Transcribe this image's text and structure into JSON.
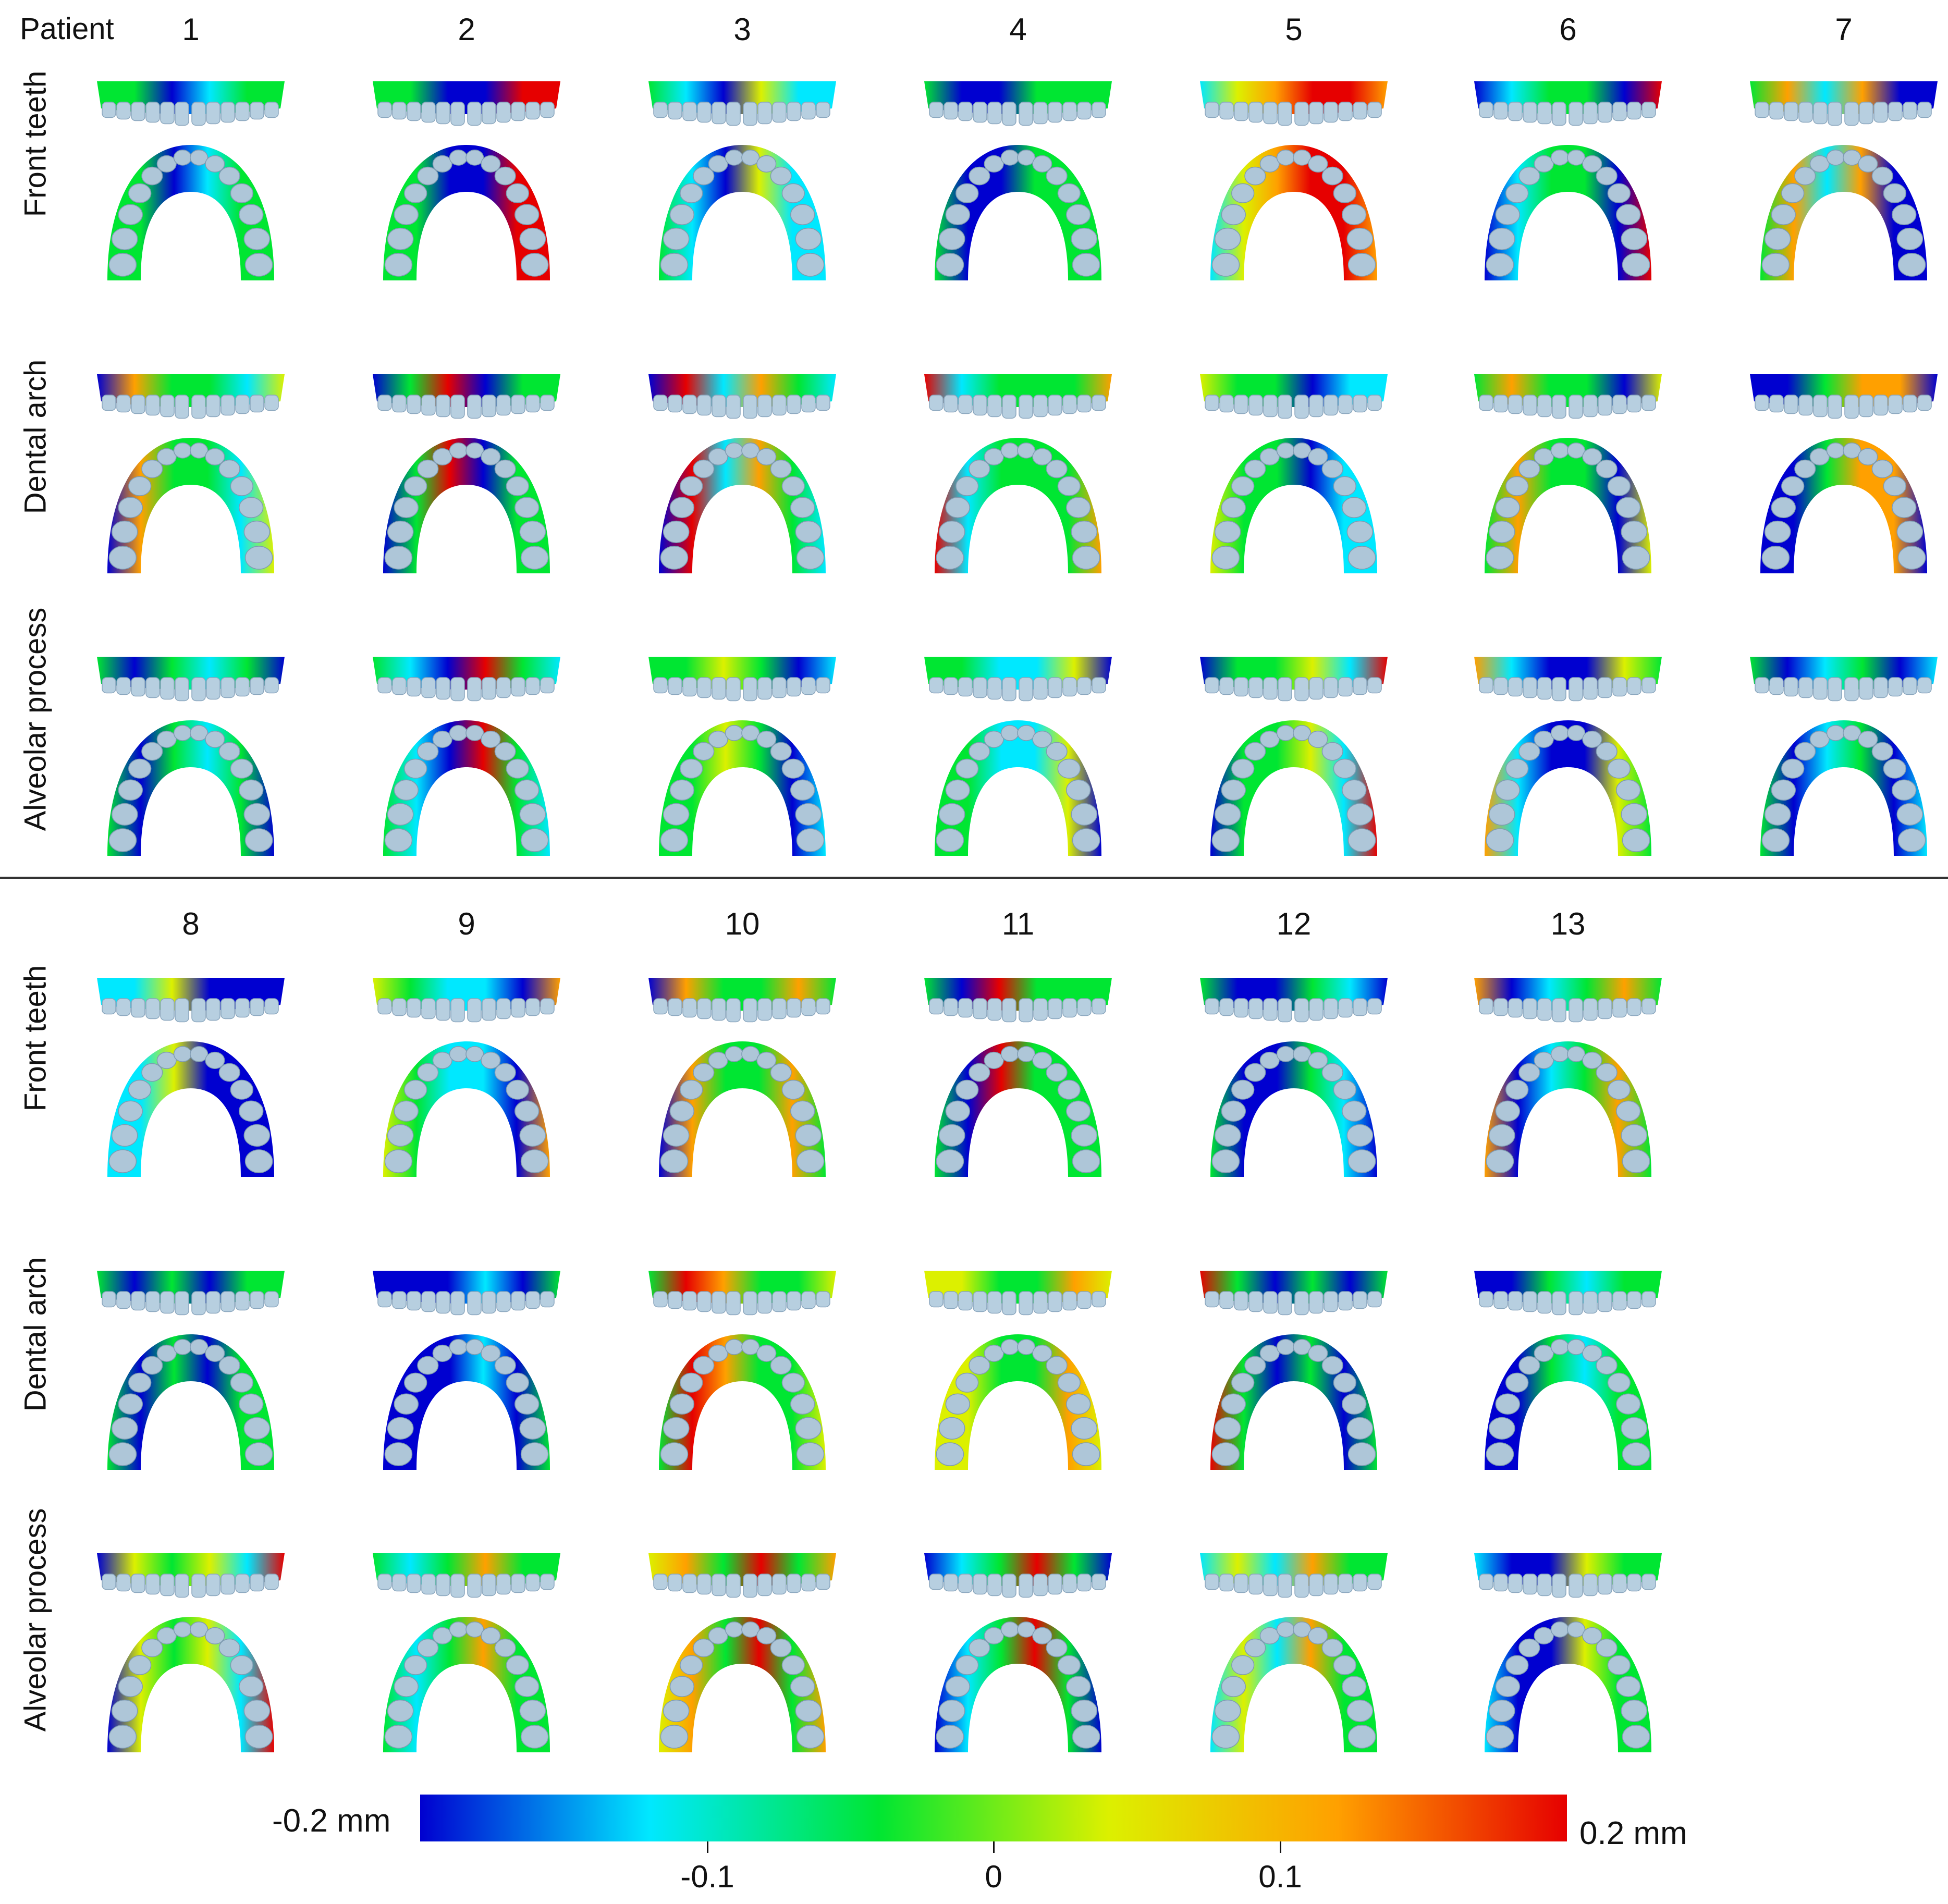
{
  "header_label": "Patient",
  "row_labels": [
    "Front teeth",
    "Dental arch",
    "Alveolar process"
  ],
  "patients_top": [
    "1",
    "2",
    "3",
    "4",
    "5",
    "6",
    "7"
  ],
  "patients_bottom": [
    "8",
    "9",
    "10",
    "11",
    "12",
    "13"
  ],
  "colorbar": {
    "min_label": "-0.2 mm",
    "max_label": "0.2 mm",
    "ticks": [
      "-0.1",
      "0",
      "0.1"
    ],
    "tick_values": [
      -0.1,
      0,
      0.1
    ],
    "range": [
      -0.2,
      0.2
    ],
    "colors": [
      "#0000d0",
      "#00e8ff",
      "#00e632",
      "#dcf000",
      "#ffa000",
      "#e60000"
    ]
  }
}
